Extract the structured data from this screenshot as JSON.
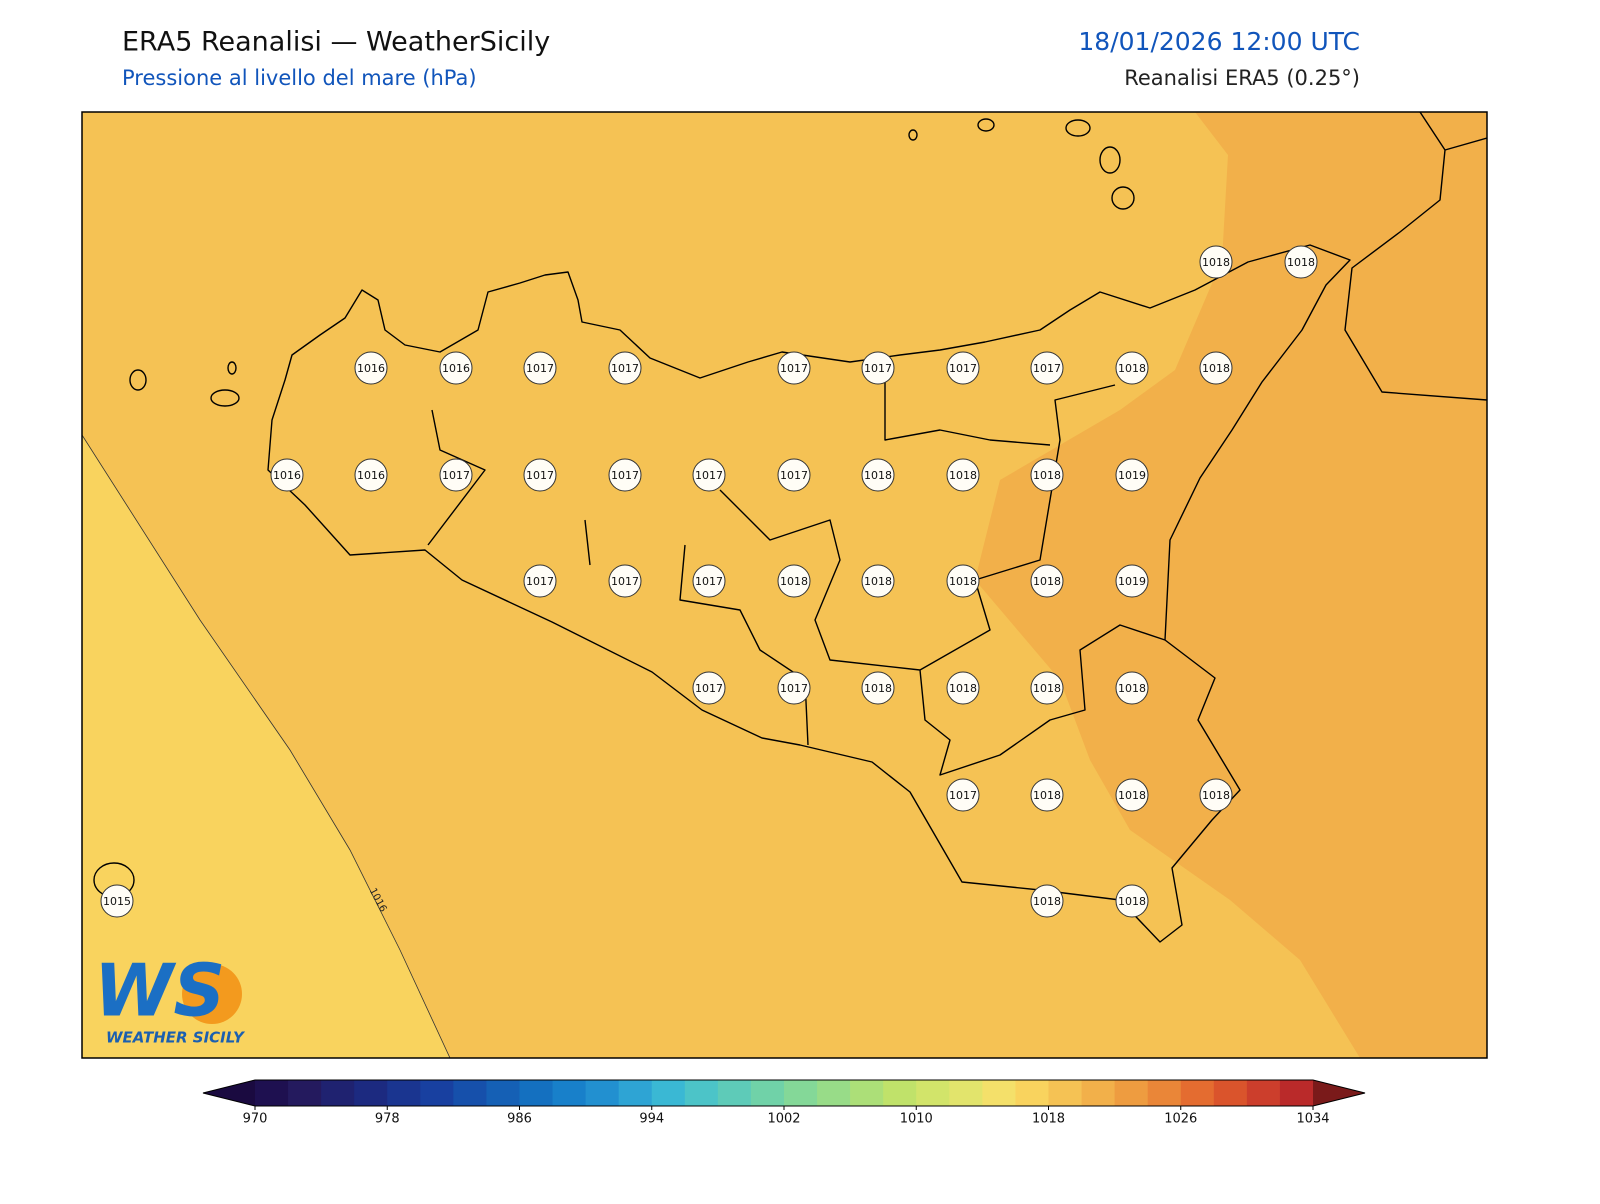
{
  "header": {
    "title": "ERA5 Reanalisi — WeatherSicily",
    "subtitle": "Pressione al livello del mare (hPa)",
    "datetime": "18/01/2026 12:00 UTC",
    "source": "Reanalisi ERA5 (0.25°)"
  },
  "map": {
    "stations": [
      1018,
      1018,
      1016,
      1016,
      1017,
      1017,
      1017,
      1017,
      1017,
      1017,
      1018,
      1018,
      1016,
      1016,
      1017,
      1017,
      1017,
      1017,
      1017,
      1018,
      1018,
      1018,
      1019,
      1017,
      1017,
      1017,
      1018,
      1018,
      1018,
      1018,
      1019,
      1017,
      1017,
      1018,
      1018,
      1018,
      1018,
      1017,
      1018,
      1018,
      1018,
      1015,
      1018,
      1018
    ],
    "contour_labels": [
      1016
    ]
  },
  "colorbar": {
    "range": [
      970,
      1034
    ],
    "ticks": [
      970,
      978,
      986,
      994,
      1002,
      1010,
      1018,
      1026,
      1034
    ],
    "colors": [
      "#1e1050",
      "#241a5e",
      "#1f2270",
      "#1c2a80",
      "#1a3590",
      "#1840a0",
      "#1650ab",
      "#1560b5",
      "#1470c0",
      "#1880ca",
      "#2290d0",
      "#2ea4d4",
      "#3ab8d4",
      "#4cc4c8",
      "#5ecbb8",
      "#70d2a8",
      "#84d898",
      "#98dc88",
      "#acdf78",
      "#c0e26a",
      "#d2e46a",
      "#e2e46c",
      "#f4e06a",
      "#f9d35e",
      "#f5c254",
      "#f2b04a",
      "#ee9c40",
      "#ea8638",
      "#e46c30",
      "#da542c",
      "#cc3e2c",
      "#ba2a2a"
    ],
    "under_color": "#1a0a40",
    "over_color": "#7a1a1a"
  },
  "logo": {
    "mark": "WS",
    "text": "WEATHER SICILY"
  }
}
